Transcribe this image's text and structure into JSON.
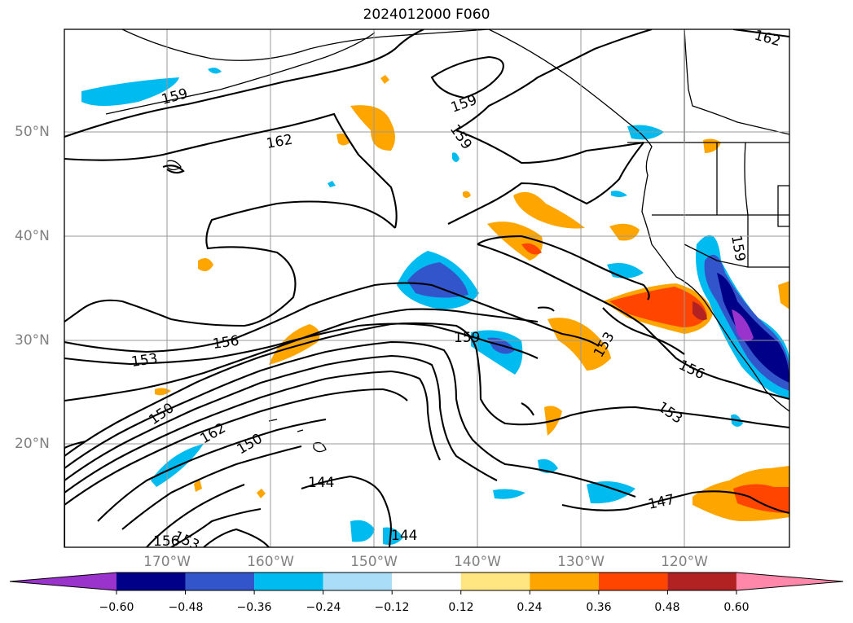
{
  "title": "2024012000 F060",
  "lat_labels": [
    "50°N",
    "40°N",
    "30°N",
    "20°N"
  ],
  "lon_labels": [
    "170°W",
    "160°W",
    "150°W",
    "140°W",
    "130°W",
    "120°W"
  ],
  "colorbar": {
    "ticks": [
      "−0.60",
      "−0.48",
      "−0.36",
      "−0.24",
      "−0.12",
      "0.12",
      "0.24",
      "0.36",
      "0.48",
      "0.60"
    ],
    "colors": [
      "#9933cc",
      "#000088",
      "#3355cc",
      "#00bbf0",
      "#aaddf8",
      "#ffffff",
      "#ffe680",
      "#ffa500",
      "#ff4500",
      "#b22222",
      "#ff88aa"
    ]
  },
  "contour_labels": [
    "162",
    "159",
    "159",
    "159",
    "162",
    "159",
    "156",
    "153",
    "159",
    "153",
    "156",
    "153",
    "150",
    "162",
    "150",
    "156",
    "153",
    "144",
    "144",
    "147"
  ]
}
